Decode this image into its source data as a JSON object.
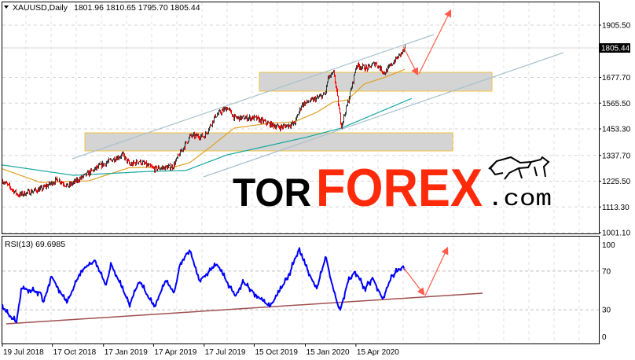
{
  "header": {
    "symbol_label": "XAUUSD,Daily",
    "ohlc": "1801.96 1810.65 1795.70 1805.44",
    "dropdown_icon": "triangle-down-icon"
  },
  "logo": {
    "part1": "TOR",
    "part2": "FOREX",
    "part3": ".com",
    "icon": "bull-icon"
  },
  "colors": {
    "bull_bar": "#2f3a3a",
    "bear_bar": "#ff0000",
    "ma_fast": "#e0a020",
    "ma_slow": "#13a89e",
    "channel": "#a9c0cc",
    "zone_fill": "#d4d4d4",
    "zone_border": "#f0c040",
    "forecast_arrow": "#ff5a4a",
    "rsi_line": "#0000ff",
    "rsi_trendline": "#a05050",
    "logo_red": "#ff2a0a"
  },
  "chart_data": [
    {
      "type": "line",
      "title": "XAUUSD,Daily",
      "ylim": [
        1001.1,
        1905.5
      ],
      "y_ticks": [
        "1905.50",
        "1677.70",
        "1565.50",
        "1453.30",
        "1337.70",
        "1225.50",
        "1113.30",
        "1001.10"
      ],
      "current_price": "1805.44",
      "grid": true,
      "series": [
        {
          "kind": "price",
          "dates": [
            "2018-07-19",
            "2018-08-16",
            "2018-09-28",
            "2018-10-26",
            "2018-11-13",
            "2018-12-21",
            "2019-01-08",
            "2019-02-01",
            "2019-02-20",
            "2019-03-05",
            "2019-03-21",
            "2019-04-17",
            "2019-05-07",
            "2019-05-21",
            "2019-05-30",
            "2019-06-21",
            "2019-07-17",
            "2019-08-06",
            "2019-08-27",
            "2019-09-09",
            "2019-10-15",
            "2019-11-08",
            "2019-11-29",
            "2019-12-26",
            "2020-01-08",
            "2020-01-29",
            "2020-02-19",
            "2020-02-24",
            "2020-03-06",
            "2020-03-19",
            "2020-03-31",
            "2020-04-08",
            "2020-04-15",
            "2020-05-05",
            "2020-05-19",
            "2020-06-05",
            "2020-06-23",
            "2020-07-02",
            "2020-07-13"
          ],
          "values": [
            1227,
            1165,
            1193,
            1234,
            1203,
            1261,
            1289,
            1320,
            1340,
            1296,
            1313,
            1279,
            1285,
            1289,
            1330,
            1422,
            1422,
            1511,
            1546,
            1501,
            1501,
            1477,
            1460,
            1477,
            1560,
            1580,
            1604,
            1673,
            1697,
            1467,
            1570,
            1649,
            1731,
            1717,
            1741,
            1697,
            1751,
            1775,
            1805.44
          ]
        },
        {
          "kind": "ma_fast",
          "dates": [
            "2018-07-19",
            "2018-09-26",
            "2018-12-21",
            "2019-03-05",
            "2019-05-21",
            "2019-06-21",
            "2019-07-28",
            "2019-09-09",
            "2019-11-08",
            "2019-12-26",
            "2020-02-04",
            "2020-03-05",
            "2020-03-31",
            "2020-04-30",
            "2020-06-08",
            "2020-07-13"
          ],
          "values": [
            1279,
            1220,
            1227,
            1285,
            1285,
            1306,
            1374,
            1457,
            1477,
            1484,
            1525,
            1570,
            1580,
            1649,
            1680,
            1714
          ]
        },
        {
          "kind": "ma_slow",
          "dates": [
            "2018-07-19",
            "2018-11-24",
            "2019-04-08",
            "2019-06-14",
            "2019-08-27",
            "2020-01-15",
            "2020-03-20",
            "2020-07-25"
          ],
          "values": [
            1296,
            1251,
            1268,
            1272,
            1340,
            1416,
            1457,
            1587
          ]
        }
      ]
    },
    {
      "type": "line",
      "title": "RSI(13) 69.6985",
      "ylim": [
        0,
        100
      ],
      "y_ticks": [
        "100",
        "70",
        "30",
        "0"
      ],
      "levels": [
        70,
        30
      ],
      "x_ticks": [
        {
          "label": "19 Jul 2018",
          "date": "2018-07-19"
        },
        {
          "label": "17 Oct 2018",
          "date": "2018-10-17"
        },
        {
          "label": "17 Jan 2019",
          "date": "2019-01-17"
        },
        {
          "label": "17 Apr 2019",
          "date": "2019-04-17"
        },
        {
          "label": "17 Jul 2019",
          "date": "2019-07-17"
        },
        {
          "label": "15 Oct 2019",
          "date": "2019-10-15"
        },
        {
          "label": "15 Jan 2020",
          "date": "2020-01-15"
        },
        {
          "label": "15 Apr 2020",
          "date": "2020-04-15"
        }
      ],
      "series": [
        {
          "kind": "rsi",
          "dates": [
            "2018-07-19",
            "2018-08-13",
            "2018-08-23",
            "2018-09-26",
            "2018-10-01",
            "2018-10-15",
            "2018-11-12",
            "2018-12-07",
            "2019-01-02",
            "2019-01-21",
            "2019-01-31",
            "2019-03-05",
            "2019-03-22",
            "2019-04-18",
            "2019-05-09",
            "2019-05-24",
            "2019-06-04",
            "2019-06-21",
            "2019-07-08",
            "2019-08-09",
            "2019-09-11",
            "2019-09-25",
            "2019-10-17",
            "2019-11-12",
            "2019-12-06",
            "2019-12-20",
            "2020-01-03",
            "2020-01-20",
            "2020-02-04",
            "2020-02-21",
            "2020-03-03",
            "2020-03-17",
            "2020-03-31",
            "2020-04-13",
            "2020-05-01",
            "2020-05-15",
            "2020-06-02",
            "2020-06-19",
            "2020-07-09",
            "2020-07-13"
          ],
          "values": [
            32,
            17,
            52,
            48,
            37,
            65,
            37,
            70,
            81,
            55,
            77,
            35,
            60,
            33,
            60,
            47,
            78,
            92,
            60,
            77,
            44,
            59,
            46,
            33,
            55,
            71,
            92,
            70,
            51,
            85,
            56,
            28,
            58,
            70,
            52,
            63,
            41,
            65,
            75,
            69.7
          ]
        }
      ]
    }
  ]
}
